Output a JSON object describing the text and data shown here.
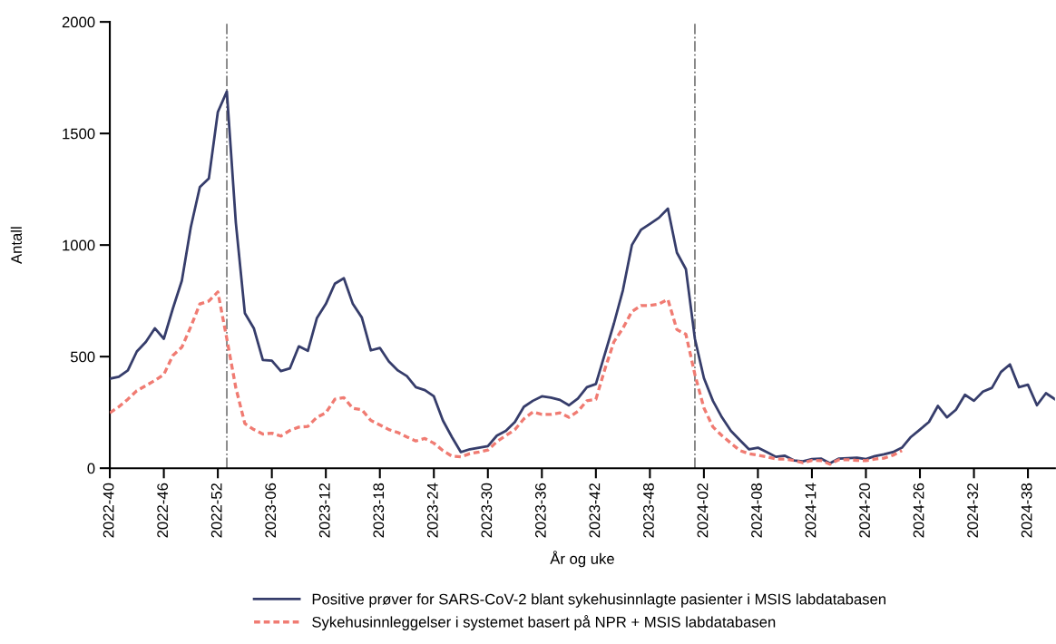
{
  "chart_data": {
    "type": "line",
    "xlabel": "År og uke",
    "ylabel": "Antall",
    "categories": [
      "2022-40",
      null,
      null,
      null,
      null,
      null,
      "2022-46",
      null,
      null,
      null,
      null,
      null,
      "2022-52",
      null,
      null,
      null,
      null,
      null,
      "2023-06",
      null,
      null,
      null,
      null,
      null,
      "2023-12",
      null,
      null,
      null,
      null,
      null,
      "2023-18",
      null,
      null,
      null,
      null,
      null,
      "2023-24",
      null,
      null,
      null,
      null,
      null,
      "2023-30",
      null,
      null,
      null,
      null,
      null,
      "2023-36",
      null,
      null,
      null,
      null,
      null,
      "2023-42",
      null,
      null,
      null,
      null,
      null,
      "2023-48",
      null,
      null,
      null,
      null,
      null,
      "2024-02",
      null,
      null,
      null,
      null,
      null,
      "2024-08",
      null,
      null,
      null,
      null,
      null,
      "2024-14",
      null,
      null,
      null,
      null,
      null,
      "2024-20",
      null,
      null,
      null,
      null,
      null,
      "2024-26",
      null,
      null,
      null,
      null,
      null,
      "2024-32",
      null,
      null,
      null,
      null,
      null,
      "2024-38",
      null,
      null,
      null
    ],
    "series": [
      {
        "name": "Positive prøver for SARS-CoV-2 blant sykehusinnlagte pasienter i MSIS labdatabasen",
        "color": "#363d6b",
        "line_style": "solid",
        "values": [
          401,
          410,
          438,
          523,
          566,
          627,
          580,
          715,
          840,
          1081,
          1260,
          1298,
          1596,
          1688,
          1100,
          695,
          627,
          485,
          482,
          435,
          447,
          546,
          526,
          672,
          736,
          827,
          851,
          736,
          675,
          528,
          539,
          478,
          438,
          413,
          363,
          350,
          322,
          214,
          140,
          72,
          85,
          92,
          99,
          146,
          167,
          207,
          275,
          302,
          322,
          316,
          306,
          282,
          312,
          363,
          377,
          512,
          648,
          797,
          1000,
          1068,
          1095,
          1122,
          1163,
          966,
          892,
          580,
          404,
          302,
          228,
          167,
          126,
          85,
          92,
          72,
          51,
          56,
          35,
          31,
          41,
          43,
          22,
          43,
          45,
          47,
          41,
          54,
          62,
          72,
          92,
          140,
          173,
          207,
          279,
          228,
          262,
          329,
          302,
          343,
          360,
          431,
          465,
          363,
          374,
          282,
          336,
          309
        ]
      },
      {
        "name": "Sykehusinnleggelser i systemet basert på NPR + MSIS labdatabasen",
        "color": "#f07b72",
        "line_style": "dashed",
        "values": [
          248,
          275,
          309,
          347,
          370,
          393,
          420,
          505,
          542,
          634,
          736,
          749,
          790,
          580,
          360,
          200,
          173,
          153,
          157,
          144,
          169,
          184,
          187,
          228,
          248,
          309,
          316,
          268,
          262,
          214,
          194,
          173,
          160,
          140,
          122,
          133,
          112,
          79,
          54,
          51,
          65,
          72,
          81,
          119,
          146,
          173,
          221,
          252,
          241,
          241,
          248,
          228,
          255,
          302,
          309,
          444,
          566,
          627,
          702,
          729,
          729,
          736,
          756,
          621,
          600,
          420,
          270,
          185,
          146,
          112,
          79,
          65,
          58,
          51,
          41,
          41,
          35,
          24,
          35,
          34,
          18,
          38,
          38,
          35,
          34,
          41,
          45,
          58,
          79,
          null,
          null,
          null,
          null,
          null,
          null,
          null,
          null,
          null,
          null,
          null,
          null,
          null,
          null,
          null,
          null,
          null
        ]
      }
    ],
    "ylim": [
      0,
      2000
    ],
    "yticks": [
      0,
      500,
      1000,
      1500,
      2000
    ],
    "legend": "bottom",
    "marker": "none"
  }
}
